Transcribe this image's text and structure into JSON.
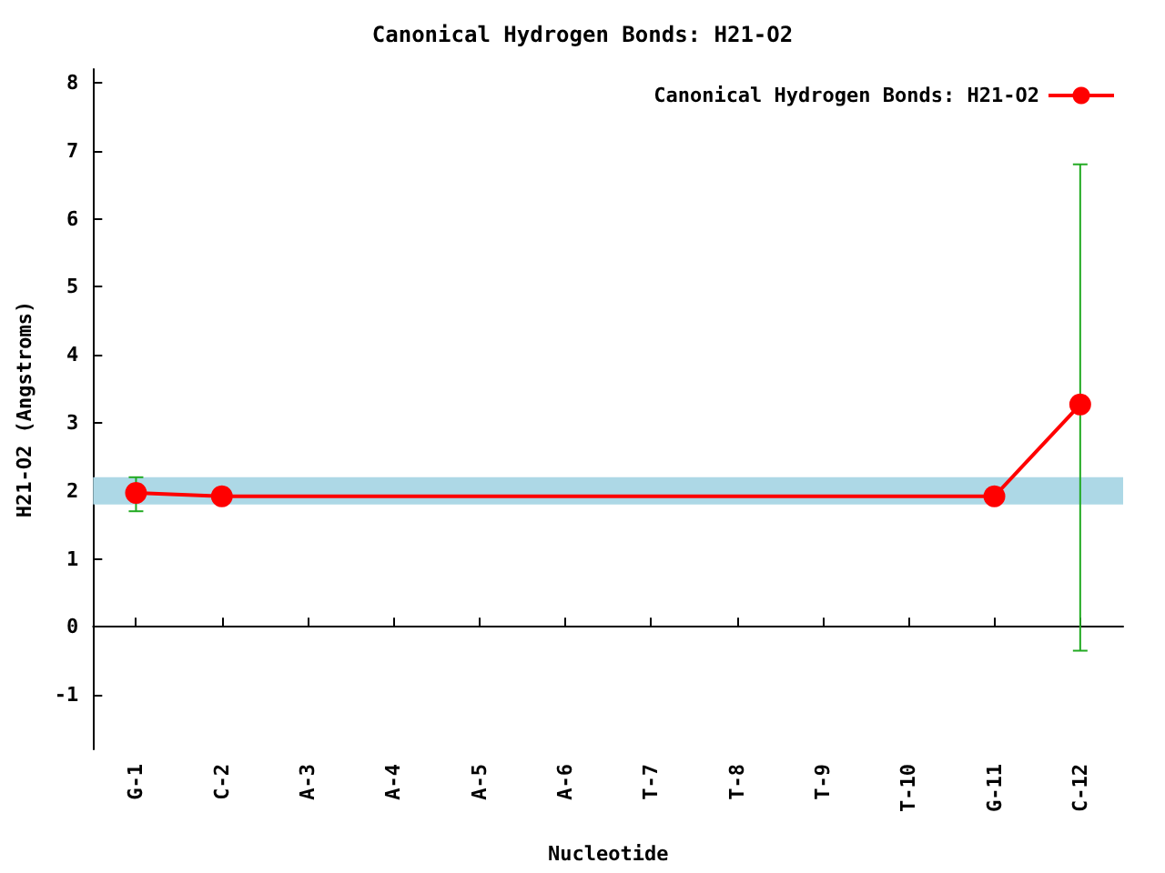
{
  "chart_data": {
    "type": "line",
    "title": "Canonical Hydrogen Bonds: H21-O2",
    "xlabel": "Nucleotide",
    "ylabel": "H21-O2 (Angstroms)",
    "categories": [
      "G-1",
      "C-2",
      "A-3",
      "A-4",
      "A-5",
      "A-6",
      "T-7",
      "T-8",
      "T-9",
      "T-10",
      "G-11",
      "C-12"
    ],
    "series": [
      {
        "name": "Canonical Hydrogen Bonds: H21-O2",
        "color": "#ff0000",
        "values": [
          1.97,
          1.92,
          null,
          null,
          null,
          null,
          null,
          null,
          null,
          null,
          1.92,
          3.27
        ],
        "errors": [
          [
            1.7,
            2.2
          ],
          null,
          null,
          null,
          null,
          null,
          null,
          null,
          null,
          null,
          null,
          [
            -0.35,
            6.8
          ]
        ]
      }
    ],
    "ylim": [
      -1.8,
      8.2
    ],
    "yticks": [
      -1,
      0,
      1,
      2,
      3,
      4,
      5,
      6,
      7,
      8
    ],
    "bands": [
      {
        "axis": "y",
        "from": 1.8,
        "to": 2.2,
        "color": "#add8e6"
      }
    ],
    "grid": false,
    "legend": "top right",
    "marker": "circle",
    "line_style": "solid"
  }
}
